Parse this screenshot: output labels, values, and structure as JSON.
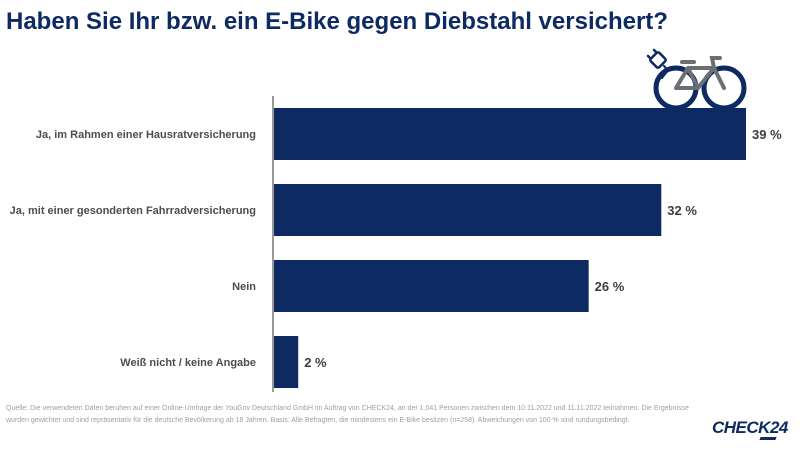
{
  "title": "Haben Sie Ihr bzw. ein E-Bike gegen Diebstahl versichert?",
  "chart_data": {
    "type": "bar",
    "orientation": "horizontal",
    "categories": [
      "Ja, im Rahmen einer Hausratversicherung",
      "Ja, mit einer gesonderten Fahrradversicherung",
      "Nein",
      "Weiß nicht / keine Angabe"
    ],
    "values": [
      39,
      32,
      26,
      2
    ],
    "value_labels": [
      "39 %",
      "32 %",
      "26 %",
      "2 %"
    ],
    "unit": "%",
    "xlim": [
      0,
      39
    ],
    "grid": false,
    "bar_color": "#0d2a63"
  },
  "source_text": "Quelle: Die verwendeten Daten beruhen auf einer Online-Umfrage der YouGov Deutschland GmbH im Auftrag von CHECK24, an der 1.041 Personen zwischen dem 10.11.2022 und 11.11.2022 teilnahmen. Die Ergebnisse wurden gewichtet und sind repräsentativ für die deutsche Bevölkerung ab 18 Jahren. Basis: Alle Befragten, die mindestens ein E-Bike besitzen (n=258). Abweichungen von 100 % sind rundungsbedingt.",
  "brand": "CHECK24",
  "icon": "e-bike-icon"
}
